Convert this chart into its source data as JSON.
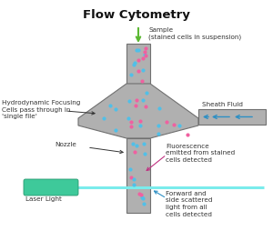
{
  "title": "Flow Cytometry",
  "title_fontsize": 9.5,
  "title_fontweight": "bold",
  "bg_color": "#ffffff",
  "funnel_color": "#b0b0b0",
  "funnel_edge_color": "#707070",
  "laser_body_color": "#3ec99a",
  "laser_beam_color": "#7aecec",
  "sheath_arrow_color": "#2d8fc4",
  "sample_arrow_color": "#5bb832",
  "fluorescence_arrow_color": "#c03080",
  "scatter_arrow_color": "#2d8fc4",
  "dot_pink": "#f060a0",
  "dot_blue": "#50c0e8",
  "text_color": "#333333",
  "annotations": {
    "sample": "Sample\n(stained cells in suspension)",
    "sheath": "Sheath Fluid",
    "hydro": "Hydrodynamic Focusing\nCells pass through in\n'single file'",
    "nozzle": "Nozzle",
    "laser": "Laser Light",
    "fluoro": "Fluorescence\nemitted from stained\ncells detected",
    "scatter": "Forward and\nside scattered\nlight from all\ncells detected"
  },
  "fs": 5.2
}
